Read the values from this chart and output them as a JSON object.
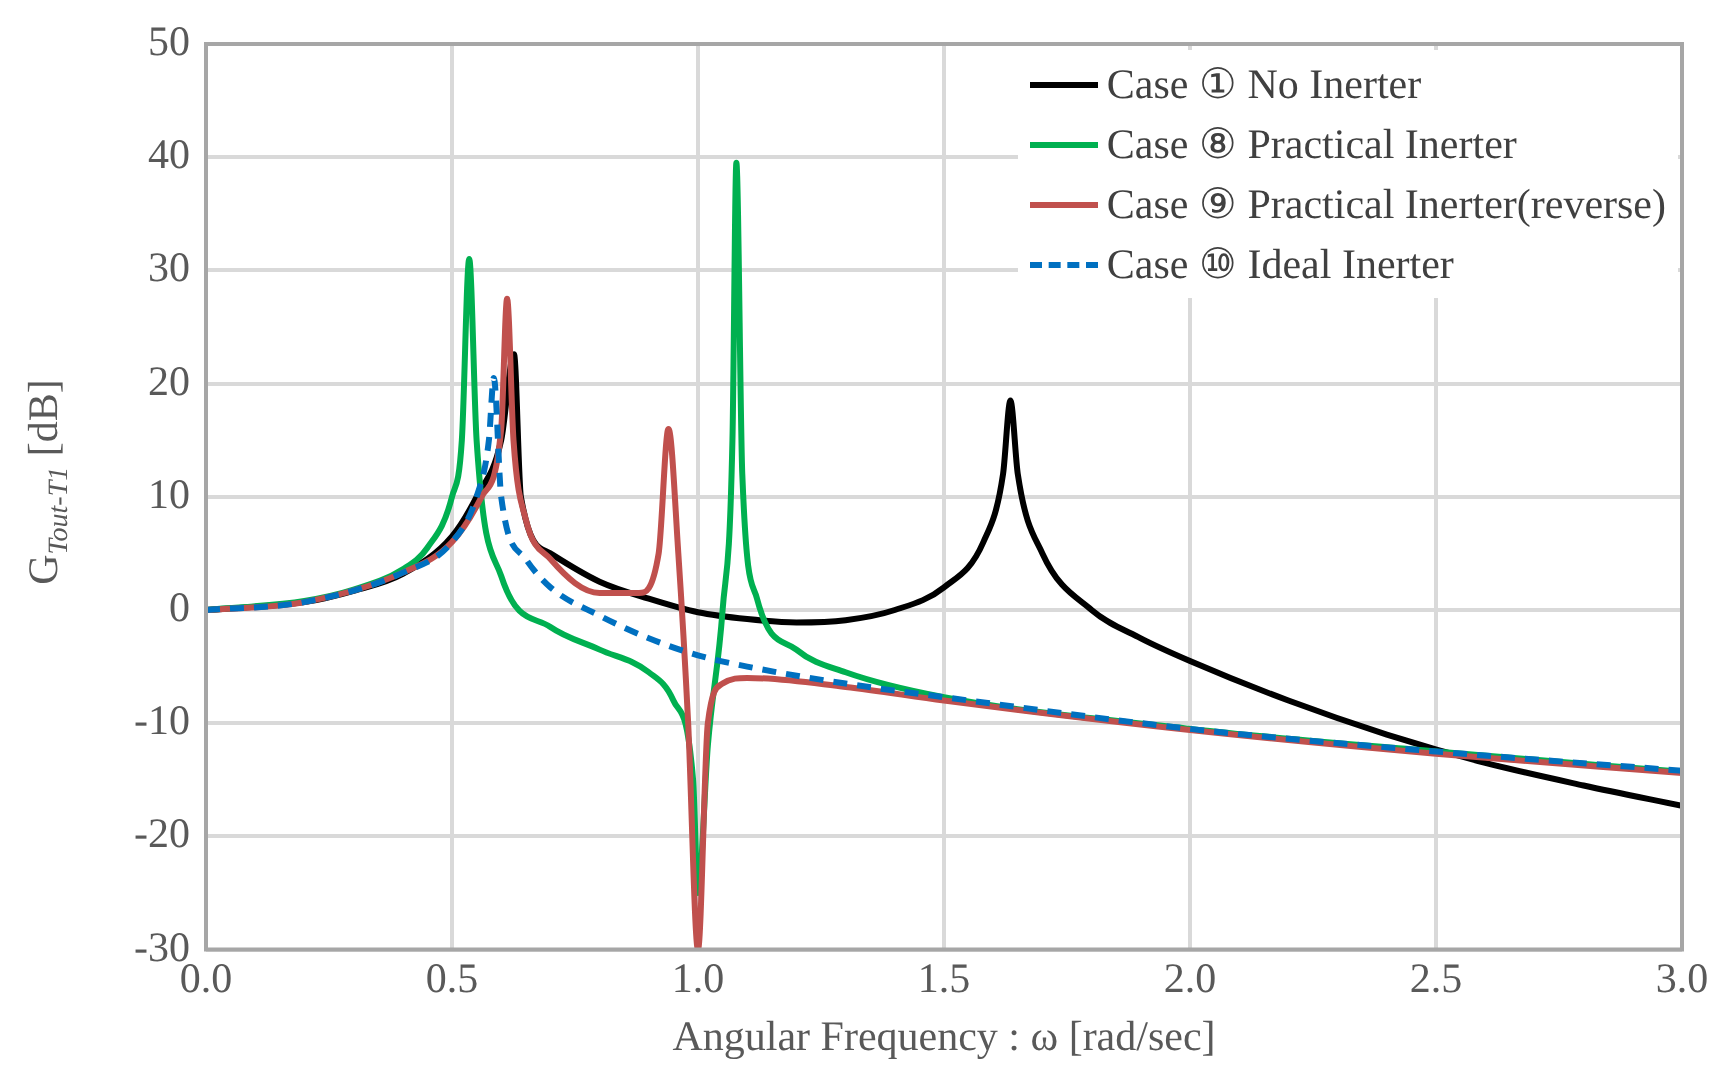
{
  "chart_data": {
    "type": "line",
    "xlabel": "Angular Frequency : ω [rad/sec]",
    "ylabel": "G$_{Tout-T1}$ [dB]",
    "xlim": [
      0,
      3
    ],
    "xticks": [
      {
        "value": 0,
        "label": "0.0"
      },
      {
        "value": 0.5,
        "label": "0.5"
      },
      {
        "value": 1,
        "label": "1.0"
      },
      {
        "value": 1.5,
        "label": "1.5"
      },
      {
        "value": 2,
        "label": "2.0"
      },
      {
        "value": 2.5,
        "label": "2.5"
      },
      {
        "value": 3,
        "label": "3.0"
      }
    ],
    "ylim": [
      -30,
      50
    ],
    "yticks": [
      -30,
      -20,
      -10,
      0,
      10,
      20,
      30,
      40,
      50
    ],
    "grid": true,
    "legend": "top right",
    "marker": "none",
    "series": [
      {
        "name": "Case ① No Inerter",
        "color": "#000000",
        "line_style": "solid",
        "x": [
          0,
          0.2,
          0.3,
          0.4,
          0.5,
          0.55,
          0.6,
          0.626,
          0.64,
          0.7,
          0.8,
          0.9,
          1.0,
          1.1,
          1.2,
          1.3,
          1.4,
          1.5,
          1.58,
          1.62,
          1.635,
          1.65,
          1.7,
          1.8,
          1.9,
          2.0,
          2.2,
          2.4,
          2.6,
          2.8,
          3.0
        ],
        "values": [
          0,
          0.7,
          1.7,
          3.2,
          6.5,
          10,
          15,
          22.6,
          10,
          5,
          2.5,
          1,
          -0.2,
          -0.8,
          -1.1,
          -0.9,
          0,
          2,
          6,
          12,
          18.5,
          12,
          5,
          0,
          -2.5,
          -4.5,
          -8,
          -11,
          -13.5,
          -15.5,
          -17.3
        ]
      },
      {
        "name": "Case ⑧ Practical Inerter",
        "color": "#00b050",
        "line_style": "solid",
        "x": [
          0,
          0.2,
          0.3,
          0.4,
          0.45,
          0.5,
          0.52,
          0.535,
          0.55,
          0.6,
          0.7,
          0.8,
          0.9,
          0.95,
          0.99,
          1.0,
          1.02,
          1.05,
          1.07,
          1.078,
          1.09,
          1.12,
          1.2,
          1.3,
          1.5,
          2.0,
          2.5,
          3.0
        ],
        "values": [
          0,
          0.8,
          1.8,
          3.6,
          5.5,
          10,
          15,
          31,
          15,
          3,
          -1.5,
          -3.5,
          -5.5,
          -8,
          -15,
          -25,
          -12,
          0,
          15,
          39.5,
          12,
          1,
          -3.5,
          -5.5,
          -7.7,
          -10.5,
          -12.5,
          -14.3
        ]
      },
      {
        "name": "Case ⑨ Practical Inerter(reverse)",
        "color": "#c0504d",
        "line_style": "solid",
        "x": [
          0,
          0.2,
          0.4,
          0.5,
          0.56,
          0.6,
          0.612,
          0.625,
          0.65,
          0.7,
          0.8,
          0.88,
          0.92,
          0.94,
          0.96,
          0.98,
          1.0,
          1.02,
          1.05,
          1.1,
          1.3,
          1.5,
          2.0,
          2.5,
          3.0
        ],
        "values": [
          0,
          0.7,
          3.3,
          6,
          10,
          16,
          27.5,
          15,
          8,
          4.5,
          1.5,
          1.5,
          5,
          16,
          5,
          -10,
          -30,
          -10,
          -6.5,
          -6,
          -6.8,
          -8,
          -10.6,
          -12.7,
          -14.4
        ]
      },
      {
        "name": "Case ⑩ Ideal Inerter",
        "color": "#0070c0",
        "line_style": "dashed",
        "x": [
          0,
          0.2,
          0.4,
          0.5,
          0.55,
          0.575,
          0.585,
          0.6,
          0.65,
          0.7,
          0.8,
          0.9,
          1.0,
          1.1,
          1.3,
          1.5,
          2.0,
          2.5,
          3.0
        ],
        "values": [
          0,
          0.7,
          3.3,
          6,
          10,
          15,
          20.5,
          10,
          4.5,
          2,
          -0.5,
          -2.5,
          -4,
          -5,
          -6.5,
          -7.7,
          -10.5,
          -12.5,
          -14.2
        ]
      }
    ]
  }
}
